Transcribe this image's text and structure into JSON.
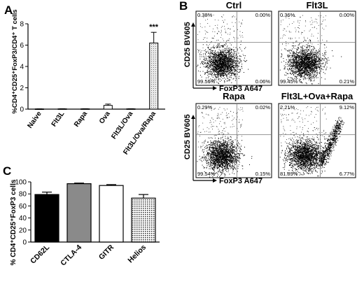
{
  "panels": {
    "A": {
      "letter": "A"
    },
    "B": {
      "letter": "B"
    },
    "C": {
      "letter": "C"
    }
  },
  "chart_data": [
    {
      "type": "bar",
      "panel": "A",
      "ylabel": "%CD4⁺CD25⁺FoxP3/CD4⁺ T cells",
      "ylim": [
        0,
        8
      ],
      "yticks": [
        0,
        2,
        4,
        6,
        8
      ],
      "categories": [
        "Naive",
        "Flt3L",
        "Rapa",
        "Ova",
        "Flt3L/Ova",
        "Flt3L/Ova/Rapa"
      ],
      "values": [
        0.02,
        0.03,
        0.03,
        0.35,
        0.03,
        6.2
      ],
      "errors": [
        0.01,
        0.01,
        0.01,
        0.12,
        0.01,
        1.0
      ],
      "annotations": [
        {
          "category": "Flt3L/Ova/Rapa",
          "text": "***"
        }
      ]
    },
    {
      "type": "scatter",
      "panel": "B",
      "subtype": "flow-cytometry-dot-plots",
      "ylabel": "CD25 BV605",
      "xlabel": "FoxP3 A647",
      "plots": [
        {
          "title": "Ctrl",
          "quadrants": {
            "ul": "0.38%",
            "ur": "0.00%",
            "ll": "99.56%",
            "lr": "0.06%"
          }
        },
        {
          "title": "Flt3L",
          "quadrants": {
            "ul": "0.36%",
            "ur": "0.00%",
            "ll": "99.45%",
            "lr": "0.21%"
          }
        },
        {
          "title": "Rapa",
          "quadrants": {
            "ul": "0.29%",
            "ur": "0.02%",
            "ll": "99.54%",
            "lr": "0.15%"
          }
        },
        {
          "title": "Flt3L+Ova+Rapa",
          "quadrants": {
            "ul": "2.21%",
            "ur": "9.12%",
            "ll": "81.89%",
            "lr": "6.77%"
          }
        }
      ]
    },
    {
      "type": "bar",
      "panel": "C",
      "ylabel": "% CD4⁺CD25⁺FoxP3 cells",
      "ylim": [
        0,
        100
      ],
      "yticks": [
        0,
        20,
        40,
        60,
        80,
        100
      ],
      "categories": [
        "CD62L",
        "CTLA-4",
        "GITR",
        "Helios"
      ],
      "values": [
        79,
        97,
        94,
        73
      ],
      "errors": [
        4,
        1,
        1.5,
        6
      ],
      "fills": [
        "#000000",
        "#8a8a8a",
        "#ffffff",
        "pattern"
      ]
    }
  ]
}
